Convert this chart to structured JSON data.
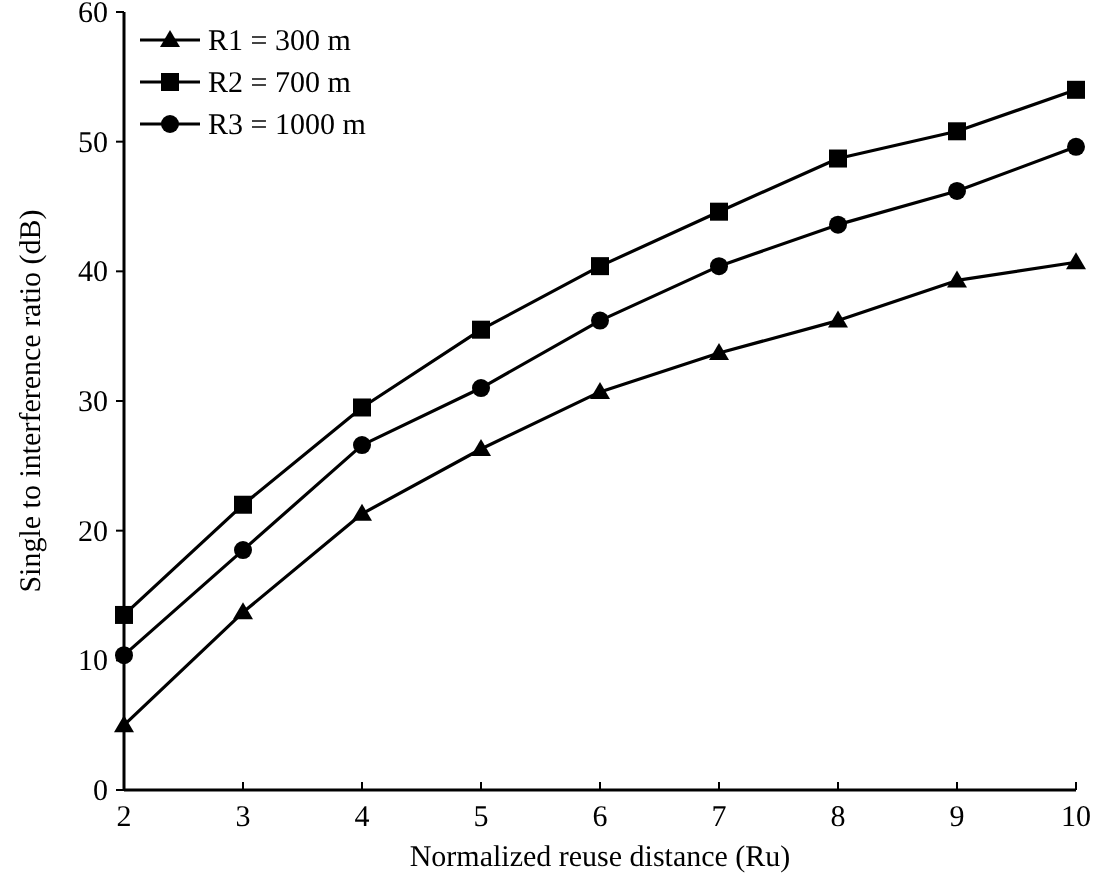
{
  "chart_data": {
    "type": "line",
    "xlabel": "Normalized reuse distance (Ru)",
    "ylabel": "Single to interference ratio (dB)",
    "x": [
      2,
      3,
      4,
      5,
      6,
      7,
      8,
      9,
      10
    ],
    "xlim": [
      2,
      10
    ],
    "xticks": [
      2,
      3,
      4,
      5,
      6,
      7,
      8,
      9,
      10
    ],
    "ylim": [
      0,
      60
    ],
    "yticks": [
      0,
      10,
      20,
      30,
      40,
      50,
      60
    ],
    "grid": false,
    "legend": "top left",
    "line_style": "solid",
    "series": [
      {
        "name": "R1 = 300 m",
        "color": "#000000",
        "marker": "triangle",
        "values": [
          5,
          13.7,
          21.3,
          26.3,
          30.7,
          33.7,
          36.2,
          39.3,
          40.7
        ]
      },
      {
        "name": "R2 = 700 m",
        "color": "#000000",
        "marker": "square",
        "values": [
          13.5,
          22,
          29.5,
          35.5,
          40.4,
          44.6,
          48.7,
          50.8,
          54
        ]
      },
      {
        "name": "R3 = 1000 m",
        "color": "#000000",
        "marker": "circle",
        "values": [
          10.4,
          18.5,
          26.6,
          31,
          36.2,
          40.4,
          43.6,
          46.2,
          49.6
        ]
      }
    ]
  }
}
